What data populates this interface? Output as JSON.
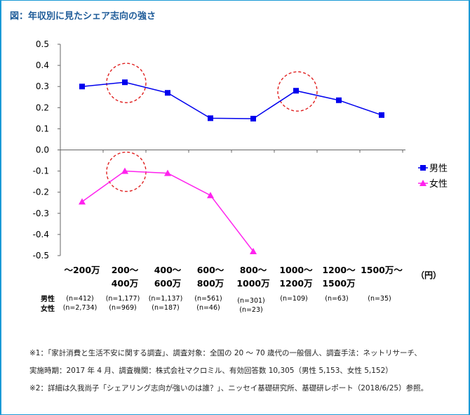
{
  "title": "図：年収別に見たシェア志向の強さ",
  "chart_data": {
    "type": "line",
    "categories": [
      [
        "～200万"
      ],
      [
        "200～",
        "400万"
      ],
      [
        "400～",
        "600万"
      ],
      [
        "600～",
        "800万"
      ],
      [
        "800～",
        "1000万"
      ],
      [
        "1000～",
        "1200万"
      ],
      [
        "1200～",
        "1500万"
      ],
      [
        "1500万～"
      ]
    ],
    "unit": "（円）",
    "ylim": [
      -0.5,
      0.5
    ],
    "yticks": [
      "0.5",
      "0.4",
      "0.3",
      "0.2",
      "0.1",
      "0.0",
      "-0.1",
      "-0.2",
      "-0.3",
      "-0.4",
      "-0.5"
    ],
    "series": [
      {
        "name": "男性",
        "color": "#0000ee",
        "marker": "square",
        "values": [
          0.3,
          0.32,
          0.27,
          0.15,
          0.148,
          0.28,
          0.235,
          0.165
        ]
      },
      {
        "name": "女性",
        "color": "#ff22ee",
        "marker": "triangle",
        "values": [
          -0.245,
          -0.1,
          -0.11,
          -0.215,
          -0.48,
          null,
          null,
          null
        ]
      }
    ],
    "highlights": [
      {
        "series": 0,
        "index": 1
      },
      {
        "series": 0,
        "index": 5
      },
      {
        "series": 1,
        "index": 1
      }
    ],
    "legend_position": "right",
    "sample_labels": {
      "male": "男性",
      "female": "女性"
    },
    "male_n": [
      "(n=412)",
      "(n=1,177)",
      "(n=1,137)",
      "(n=561)",
      "(n=301)",
      "(n=109)",
      "(n=63)",
      "(n=35)"
    ],
    "female_n": [
      "(n=2,734)",
      "(n=969)",
      "(n=187)",
      "(n=46)",
      "(n=23)",
      "",
      "",
      ""
    ]
  },
  "notes": [
    "※1：「家計消費と生活不安に関する調査」、調査対象：全国の 20 ～ 70 歳代の一般個人、調査手法：ネットリサーチ、",
    "実施時期：2017 年 4 月、調査機関：株式会社マクロミル、有効回答数 10,305（男性 5,153、女性 5,152）",
    "※2：詳細は久我尚子「シェアリング志向が強いのは誰？」、ニッセイ基礎研究所、基礎研レポート（2018/6/25）参照。"
  ]
}
